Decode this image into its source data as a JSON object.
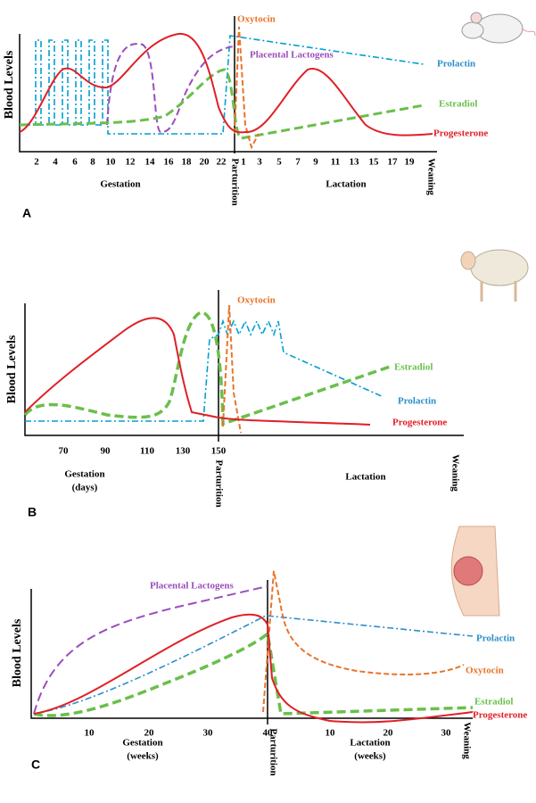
{
  "panels": [
    {
      "label": "A",
      "y_axis_label": "Blood Levels",
      "x_ticks": [
        "2",
        "4",
        "6",
        "8",
        "10",
        "12",
        "14",
        "16",
        "18",
        "20",
        "22",
        "1",
        "3",
        "5",
        "7",
        "9",
        "11",
        "13",
        "15",
        "17",
        "19"
      ],
      "gestation_label": [
        "Gestation"
      ],
      "parturition_label": "Parturition",
      "lactation_label": [
        "Lactation"
      ],
      "weaning_label": "Weaning",
      "curve_labels": {
        "oxytocin": "Oxytocin",
        "placental_lactogens": "Placental Lactogens",
        "prolactin": "Prolactin",
        "estradiol": "Estradiol",
        "progesterone": "Progesterone"
      }
    },
    {
      "label": "B",
      "y_axis_label": "Blood Levels",
      "x_ticks": [
        "70",
        "90",
        "110",
        "130",
        "150"
      ],
      "gestation_label": [
        "Gestation",
        "(days)"
      ],
      "parturition_label": "Parturition",
      "lactation_label": [
        "Lactation"
      ],
      "weaning_label": "Weaning",
      "curve_labels": {
        "oxytocin": "Oxytocin",
        "estradiol": "Estradiol",
        "prolactin": "Prolactin",
        "progesterone": "Progesterone"
      }
    },
    {
      "label": "C",
      "y_axis_label": "Blood Levels",
      "x_ticks": [
        "10",
        "20",
        "30",
        "40",
        "10",
        "20",
        "30"
      ],
      "gestation_label": [
        "Gestation",
        "(weeks)"
      ],
      "parturition_label": "Parturition",
      "lactation_label": [
        "Lactation",
        "(weeks)"
      ],
      "weaning_label": "Weaning",
      "curve_labels": {
        "placental_lactogens": "Placental Lactogens",
        "prolactin": "Prolactin",
        "oxytocin": "Oxytocin",
        "estradiol": "Estradiol",
        "progesterone": "Progesterone"
      }
    }
  ]
}
